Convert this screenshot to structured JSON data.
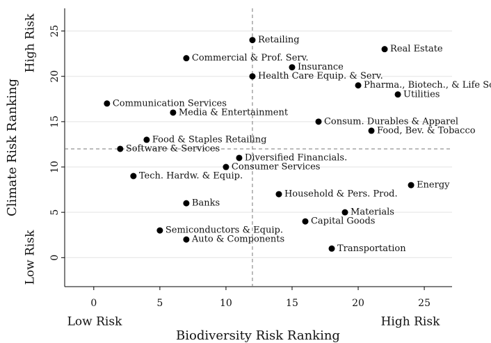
{
  "chart_data": {
    "type": "scatter",
    "x_label": "Biodiversity Risk Ranking",
    "y_label": "Climate Risk Ranking",
    "x_low_label": "Low Risk",
    "x_high_label": "High Risk",
    "y_low_label": "Low Risk",
    "y_high_label": "High Risk",
    "labels": [
      "Retailing",
      "Commercial & Prof. Serv.",
      "Real Estate",
      "Insurance",
      "Health Care Equip. & Serv.",
      "Pharma., Biotech., & Life Sc.",
      "Utilities",
      "Communication Services",
      "Media & Entertainment",
      "Consum. Durables & Apparel",
      "Food, Bev. & Tobacco",
      "Food & Staples Retailing",
      "Software & Services",
      "Diversified Financials.",
      "Consumer Services",
      "Tech. Hardw. & Equip.",
      "Energy",
      "Household & Pers. Prod.",
      "Banks",
      "Materials",
      "Capital Goods",
      "Semiconductors & Equip.",
      "Auto & Components",
      "Transportation"
    ],
    "x": [
      12,
      7,
      22,
      15,
      12,
      20,
      23,
      1,
      6,
      17,
      21,
      4,
      2,
      11,
      10,
      3,
      24,
      14,
      7,
      19,
      16,
      5,
      7,
      18
    ],
    "values": [
      24,
      22,
      23,
      21,
      20,
      19,
      18,
      17,
      16,
      15,
      14,
      13,
      12,
      11,
      10,
      9,
      8,
      7,
      6,
      5,
      4,
      3,
      2,
      1
    ],
    "color": "#000000",
    "reference_x": 12,
    "reference_y": 12,
    "xlim": [
      -2.2,
      27.1
    ],
    "ylim": [
      -3.2,
      27.5
    ],
    "xticks": [
      0,
      5,
      10,
      15,
      20,
      25
    ],
    "yticks": [
      0,
      5,
      10,
      15,
      20,
      25
    ],
    "grid": true
  }
}
